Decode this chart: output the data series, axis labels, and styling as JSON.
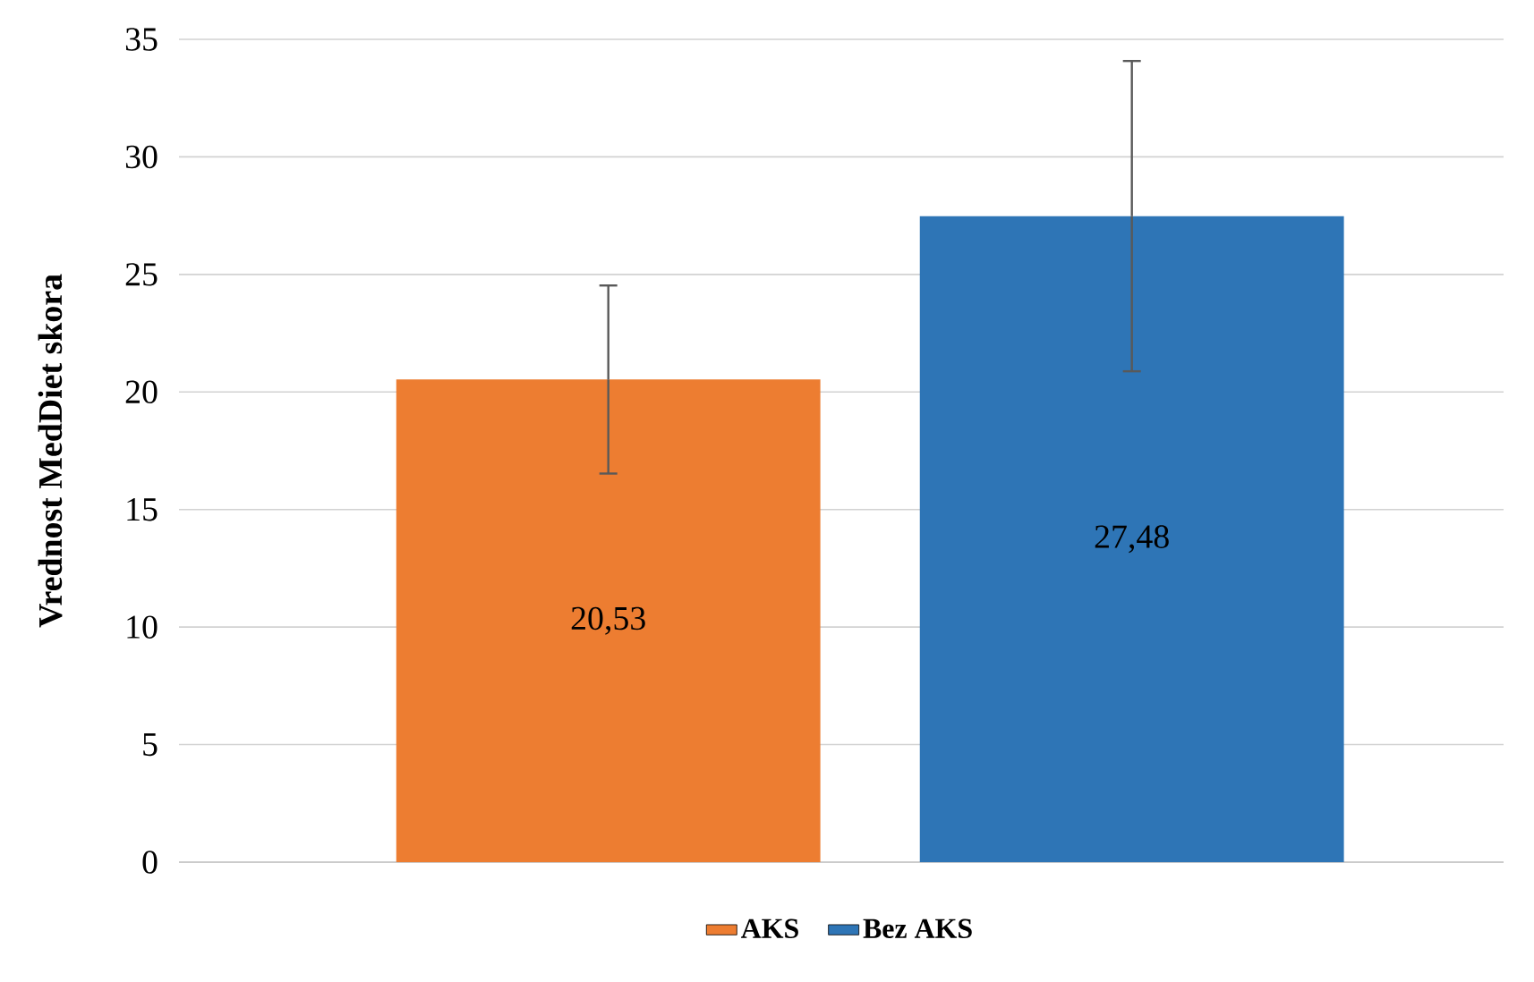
{
  "chart_data": {
    "type": "bar",
    "ylabel": "Vrednost MedDiet skora",
    "categories": [
      null,
      null
    ],
    "series": [
      {
        "name": "AKS",
        "color": "#ed7d31",
        "values": [
          20.53,
          null
        ],
        "errors": [
          4.0,
          null
        ],
        "value_labels": [
          "20,53",
          null
        ]
      },
      {
        "name": "Bez AKS",
        "color": "#2e75b6",
        "values": [
          null,
          27.48
        ],
        "errors": [
          null,
          6.6
        ],
        "value_labels": [
          null,
          "27,48"
        ]
      }
    ],
    "ylim": [
      0,
      35
    ],
    "yticks": [
      0,
      5,
      10,
      15,
      20,
      25,
      30,
      35
    ],
    "grid": "y",
    "legend": "bottom"
  }
}
